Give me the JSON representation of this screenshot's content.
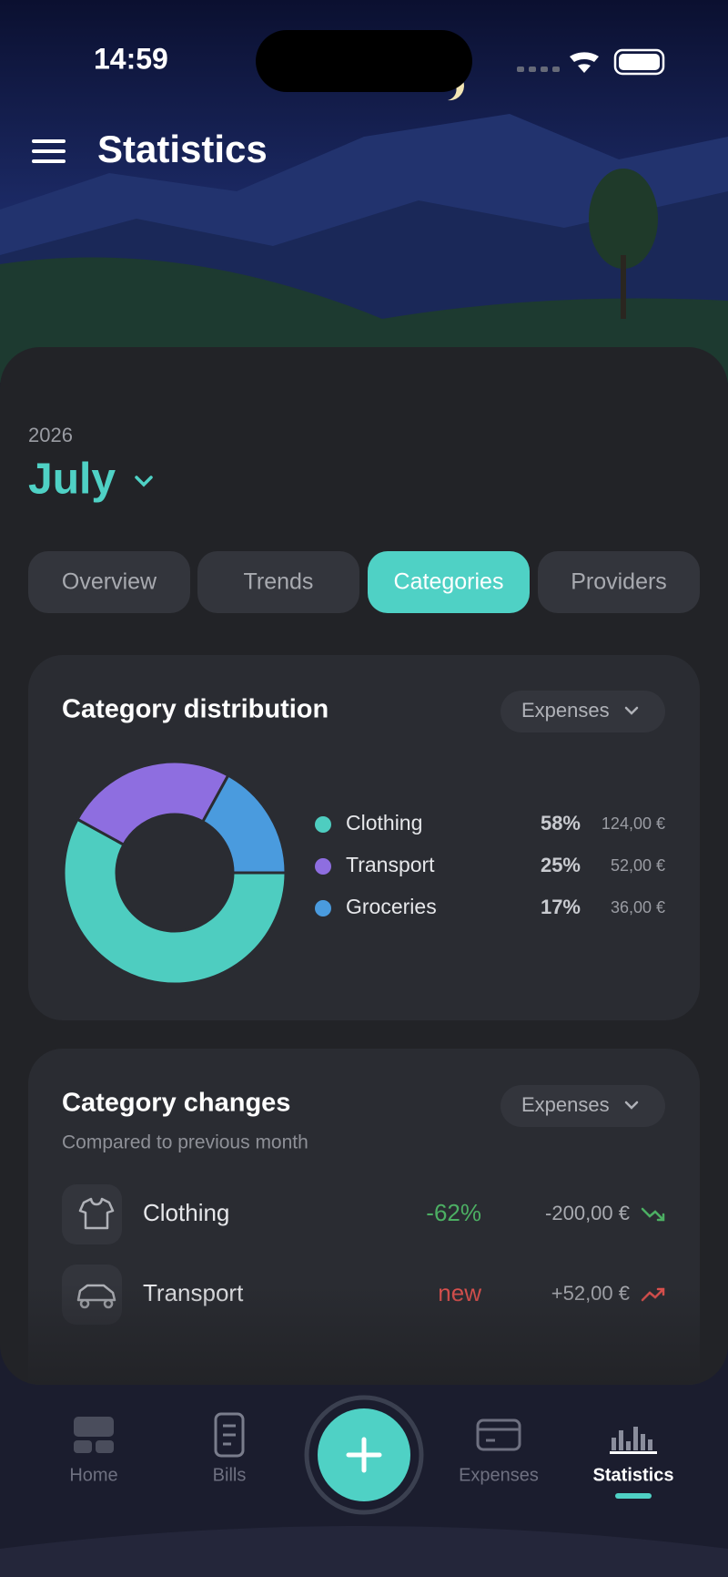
{
  "status": {
    "time": "14:59"
  },
  "header": {
    "title": "Statistics"
  },
  "period": {
    "year": "2026",
    "month": "July"
  },
  "tabs": {
    "items": [
      "Overview",
      "Trends",
      "Categories",
      "Providers"
    ],
    "active": "Categories"
  },
  "chart_data": {
    "type": "pie",
    "title": "Category distribution",
    "filter": "Expenses",
    "categories": [
      "Clothing",
      "Transport",
      "Groceries"
    ],
    "values": [
      58,
      25,
      17
    ],
    "value_labels": [
      "58%",
      "25%",
      "17%"
    ],
    "amounts": [
      "124,00 €",
      "52,00 €",
      "36,00 €"
    ],
    "colors": [
      "#4ecdc0",
      "#8e6ee0",
      "#4a9bde"
    ]
  },
  "changes": {
    "title": "Category changes",
    "filter": "Expenses",
    "subtitle": "Compared to previous month",
    "rows": [
      {
        "name": "Clothing",
        "change": "-62%",
        "amount": "-200,00 €",
        "trend": "down"
      },
      {
        "name": "Transport",
        "change": "new",
        "amount": "+52,00 €",
        "trend": "up"
      }
    ]
  },
  "nav": {
    "items": [
      "Home",
      "Bills",
      "Expenses",
      "Statistics"
    ],
    "active": "Statistics"
  }
}
